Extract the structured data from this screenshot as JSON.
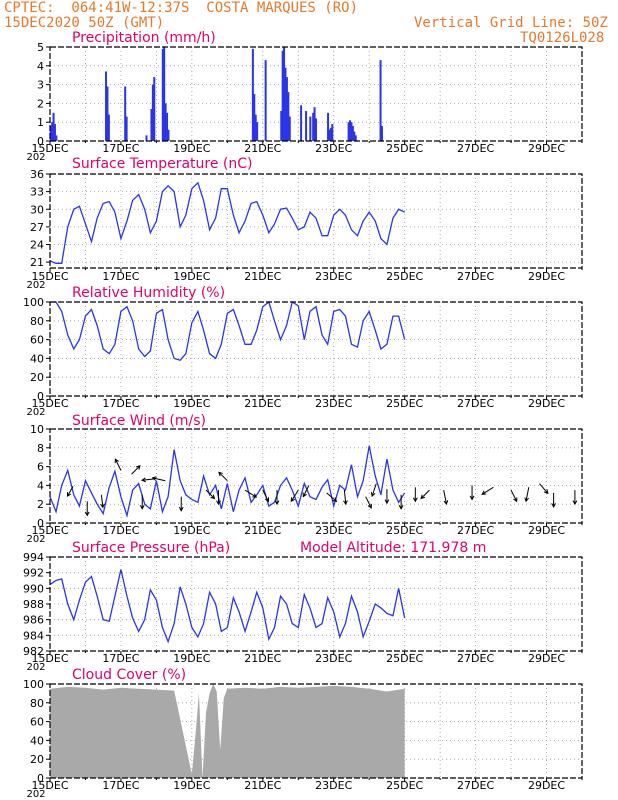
{
  "header": {
    "source_line": "CPTEC:  064:41W-12:37S  COSTA MARQUES (RO)",
    "date_line": "15DEC2020 50Z (GMT)",
    "grid_line": "Vertical Grid Line: 50Z",
    "code": "TQ0126L028"
  },
  "colors": {
    "header": "#e8782a",
    "panel_title": "#e0006e",
    "series": "#2b35e8",
    "bars": "#2b35e8",
    "cloud": "#a9a9a9",
    "arrows": "#000000",
    "grid": "#999999"
  },
  "x_axis": {
    "labels": [
      "15DEC",
      "17DEC",
      "19DEC",
      "21DEC",
      "23DEC",
      "25DEC",
      "27DEC",
      "29DEC"
    ],
    "clipped_year_label": "202"
  },
  "chart_data": [
    {
      "id": "precipitation",
      "type": "bar",
      "title": "Precipitation (mm/h)",
      "ylim": [
        0,
        5
      ],
      "yticks": [
        "0",
        "1",
        "2",
        "3",
        "4",
        "5"
      ],
      "x_days": [
        0.02,
        0.06,
        0.1,
        0.14,
        0.18,
        1.58,
        1.62,
        1.66,
        2.12,
        2.16,
        2.72,
        2.86,
        2.9,
        2.94,
        3.18,
        3.22,
        3.26,
        3.3,
        3.34,
        5.72,
        5.76,
        5.8,
        5.84,
        6.08,
        6.52,
        6.56,
        6.6,
        6.64,
        6.68,
        6.72,
        6.76,
        7.08,
        7.22,
        7.34,
        7.42,
        7.46,
        7.5,
        7.84,
        7.88,
        7.92,
        7.96,
        8.42,
        8.46,
        8.5,
        8.54,
        8.58,
        8.62,
        9.32,
        9.36
      ],
      "values": [
        0.8,
        1.0,
        1.5,
        0.9,
        0.3,
        3.7,
        2.9,
        1.4,
        2.9,
        1.3,
        0.3,
        1.7,
        3.0,
        3.4,
        4.9,
        5.0,
        2.0,
        1.5,
        0.6,
        4.9,
        2.5,
        1.4,
        1.0,
        4.3,
        1.6,
        4.8,
        5.0,
        3.9,
        3.4,
        2.6,
        1.3,
        1.9,
        1.6,
        1.3,
        1.5,
        1.8,
        1.2,
        1.5,
        0.6,
        0.7,
        0.9,
        1.0,
        1.1,
        1.0,
        0.8,
        0.5,
        0.3,
        4.3,
        0.8
      ],
      "grid": true
    },
    {
      "id": "temperature",
      "type": "line",
      "title": "Surface Temperature (nC)",
      "ylim": [
        20,
        36
      ],
      "yticks": [
        "21",
        "24",
        "27",
        "30",
        "33",
        "36"
      ],
      "x_days": [
        0.0,
        0.17,
        0.33,
        0.5,
        0.67,
        0.83,
        1.0,
        1.17,
        1.33,
        1.5,
        1.67,
        1.83,
        2.0,
        2.17,
        2.33,
        2.5,
        2.67,
        2.83,
        3.0,
        3.17,
        3.33,
        3.5,
        3.67,
        3.83,
        4.0,
        4.17,
        4.33,
        4.5,
        4.67,
        4.83,
        5.0,
        5.17,
        5.33,
        5.5,
        5.67,
        5.83,
        6.0,
        6.17,
        6.33,
        6.5,
        6.67,
        6.83,
        7.0,
        7.17,
        7.33,
        7.5,
        7.67,
        7.83,
        8.0,
        8.17,
        8.33,
        8.5,
        8.67,
        8.83,
        9.0,
        9.17,
        9.33,
        9.5,
        9.67,
        9.83,
        10.0
      ],
      "values": [
        21.2,
        20.8,
        20.8,
        27.0,
        30.0,
        30.5,
        27.5,
        24.5,
        28.5,
        31.0,
        31.3,
        29.5,
        25.0,
        28.0,
        31.5,
        32.5,
        30.0,
        26.0,
        28.0,
        33.0,
        34.0,
        33.0,
        27.0,
        29.0,
        33.5,
        34.5,
        31.5,
        26.5,
        28.5,
        33.5,
        33.5,
        29.0,
        26.0,
        28.0,
        31.0,
        31.3,
        29.0,
        26.0,
        27.5,
        30.0,
        30.2,
        28.5,
        26.5,
        27.0,
        29.5,
        28.5,
        25.5,
        25.5,
        29.0,
        30.0,
        29.0,
        26.5,
        25.5,
        28.0,
        29.5,
        28.0,
        25.0,
        24.0,
        28.5,
        30.0,
        29.5
      ],
      "grid": true
    },
    {
      "id": "humidity",
      "type": "line",
      "title": "Relative Humidity (%)",
      "ylim": [
        0,
        100
      ],
      "yticks": [
        "0",
        "20",
        "40",
        "60",
        "80",
        "100"
      ],
      "x_days": [
        0.0,
        0.17,
        0.33,
        0.5,
        0.67,
        0.83,
        1.0,
        1.17,
        1.33,
        1.5,
        1.67,
        1.83,
        2.0,
        2.17,
        2.33,
        2.5,
        2.67,
        2.83,
        3.0,
        3.17,
        3.33,
        3.5,
        3.67,
        3.83,
        4.0,
        4.17,
        4.33,
        4.5,
        4.67,
        4.83,
        5.0,
        5.17,
        5.33,
        5.5,
        5.67,
        5.83,
        6.0,
        6.17,
        6.33,
        6.5,
        6.67,
        6.83,
        7.0,
        7.17,
        7.33,
        7.5,
        7.67,
        7.83,
        8.0,
        8.17,
        8.33,
        8.5,
        8.67,
        8.83,
        9.0,
        9.17,
        9.33,
        9.5,
        9.67,
        9.83,
        10.0
      ],
      "values": [
        100,
        100,
        90,
        65,
        50,
        60,
        85,
        92,
        75,
        50,
        45,
        55,
        90,
        95,
        80,
        50,
        42,
        48,
        88,
        92,
        60,
        40,
        38,
        45,
        78,
        90,
        70,
        45,
        40,
        55,
        88,
        92,
        75,
        55,
        55,
        70,
        95,
        100,
        80,
        60,
        75,
        100,
        96,
        60,
        90,
        95,
        65,
        55,
        90,
        92,
        85,
        55,
        52,
        80,
        90,
        70,
        50,
        55,
        85,
        85,
        60
      ],
      "grid": true
    },
    {
      "id": "wind",
      "type": "line",
      "title": "Surface Wind (m/s)",
      "ylim": [
        0,
        10
      ],
      "yticks": [
        "0",
        "2",
        "4",
        "6",
        "8",
        "10"
      ],
      "x_days": [
        0.0,
        0.17,
        0.33,
        0.5,
        0.67,
        0.83,
        1.0,
        1.17,
        1.33,
        1.5,
        1.67,
        1.83,
        2.0,
        2.17,
        2.33,
        2.5,
        2.67,
        2.83,
        3.0,
        3.17,
        3.33,
        3.5,
        3.67,
        3.83,
        4.0,
        4.17,
        4.33,
        4.5,
        4.67,
        4.83,
        5.0,
        5.17,
        5.33,
        5.5,
        5.67,
        5.83,
        6.0,
        6.17,
        6.33,
        6.5,
        6.67,
        6.83,
        7.0,
        7.17,
        7.33,
        7.5,
        7.67,
        7.83,
        8.0,
        8.17,
        8.33,
        8.5,
        8.67,
        8.83,
        9.0,
        9.17,
        9.33,
        9.5,
        9.67,
        9.83,
        10.0
      ],
      "values": [
        2.8,
        1.2,
        4.0,
        5.6,
        3.0,
        1.8,
        4.5,
        3.2,
        2.0,
        1.0,
        3.8,
        5.5,
        2.8,
        0.8,
        3.5,
        4.2,
        2.0,
        1.5,
        4.5,
        1.2,
        2.8,
        7.8,
        4.5,
        3.0,
        2.5,
        2.2,
        5.0,
        3.0,
        4.0,
        1.5,
        4.2,
        1.2,
        3.5,
        4.8,
        2.2,
        3.0,
        4.0,
        1.8,
        2.2,
        4.0,
        4.8,
        3.5,
        1.8,
        4.2,
        2.8,
        2.5,
        3.8,
        4.6,
        1.8,
        4.0,
        3.5,
        6.2,
        2.8,
        4.5,
        8.2,
        5.0,
        3.0,
        6.8,
        3.5,
        2.2,
        3.2
      ],
      "vectors": [
        {
          "x": 0.65,
          "y": 3.9,
          "dx": -0.4,
          "dy": 0.7
        },
        {
          "x": 1.05,
          "y": 2.3,
          "dx": 0.0,
          "dy": 1.0
        },
        {
          "x": 1.45,
          "y": 3.0,
          "dx": 0.1,
          "dy": 0.9
        },
        {
          "x": 2.0,
          "y": 5.6,
          "dx": -0.4,
          "dy": -0.8
        },
        {
          "x": 2.3,
          "y": 5.2,
          "dx": 0.6,
          "dy": -0.6
        },
        {
          "x": 2.6,
          "y": 3.0,
          "dx": 0.0,
          "dy": 1.0
        },
        {
          "x": 2.95,
          "y": 4.7,
          "dx": -0.9,
          "dy": 0.1
        },
        {
          "x": 3.25,
          "y": 4.5,
          "dx": -0.9,
          "dy": -0.2
        },
        {
          "x": 3.7,
          "y": 2.8,
          "dx": 0.0,
          "dy": 1.0
        },
        {
          "x": 4.4,
          "y": 3.5,
          "dx": 0.6,
          "dy": 0.6
        },
        {
          "x": 4.75,
          "y": 3.5,
          "dx": 0.0,
          "dy": 1.0
        },
        {
          "x": 5.0,
          "y": 4.5,
          "dx": -0.6,
          "dy": -0.6
        },
        {
          "x": 5.5,
          "y": 3.5,
          "dx": 0.8,
          "dy": 0.5
        },
        {
          "x": 6.0,
          "y": 3.5,
          "dx": 0.4,
          "dy": 0.8
        },
        {
          "x": 6.4,
          "y": 3.5,
          "dx": 0.0,
          "dy": 1.0
        },
        {
          "x": 7.0,
          "y": 3.5,
          "dx": -0.5,
          "dy": 0.8
        },
        {
          "x": 7.3,
          "y": 4.0,
          "dx": -0.4,
          "dy": 0.8
        },
        {
          "x": 7.8,
          "y": 3.2,
          "dx": 0.7,
          "dy": 0.6
        },
        {
          "x": 8.3,
          "y": 3.5,
          "dx": 0.1,
          "dy": 1.0
        },
        {
          "x": 8.9,
          "y": 2.8,
          "dx": 0.4,
          "dy": 0.8
        },
        {
          "x": 9.2,
          "y": 4.2,
          "dx": -0.3,
          "dy": 0.9
        },
        {
          "x": 9.5,
          "y": 3.6,
          "dx": 0.0,
          "dy": 1.0
        },
        {
          "x": 9.9,
          "y": 3.0,
          "dx": 0.0,
          "dy": 1.0
        },
        {
          "x": 10.3,
          "y": 3.8,
          "dx": 0.0,
          "dy": 1.0
        },
        {
          "x": 10.7,
          "y": 3.5,
          "dx": -0.6,
          "dy": 0.6
        },
        {
          "x": 11.1,
          "y": 3.5,
          "dx": 0.2,
          "dy": 1.0
        },
        {
          "x": 11.9,
          "y": 4.0,
          "dx": 0.0,
          "dy": 1.0
        },
        {
          "x": 12.5,
          "y": 3.8,
          "dx": -0.8,
          "dy": 0.5
        },
        {
          "x": 13.0,
          "y": 3.5,
          "dx": 0.4,
          "dy": 0.8
        },
        {
          "x": 13.5,
          "y": 3.8,
          "dx": -0.2,
          "dy": 1.0
        },
        {
          "x": 13.8,
          "y": 4.2,
          "dx": 0.6,
          "dy": 0.7
        },
        {
          "x": 14.2,
          "y": 3.2,
          "dx": 0.0,
          "dy": 1.0
        },
        {
          "x": 14.8,
          "y": 3.5,
          "dx": 0.0,
          "dy": 1.0
        }
      ],
      "grid": true
    },
    {
      "id": "pressure",
      "type": "line",
      "title": "Surface Pressure (hPa)",
      "annotation": "Model Altitude: 171.978 m",
      "ylim": [
        982,
        994
      ],
      "yticks": [
        "982",
        "984",
        "986",
        "988",
        "990",
        "992",
        "994"
      ],
      "x_days": [
        0.0,
        0.17,
        0.33,
        0.5,
        0.67,
        0.83,
        1.0,
        1.17,
        1.33,
        1.5,
        1.67,
        1.83,
        2.0,
        2.17,
        2.33,
        2.5,
        2.67,
        2.83,
        3.0,
        3.17,
        3.33,
        3.5,
        3.67,
        3.83,
        4.0,
        4.17,
        4.33,
        4.5,
        4.67,
        4.83,
        5.0,
        5.17,
        5.33,
        5.5,
        5.67,
        5.83,
        6.0,
        6.17,
        6.33,
        6.5,
        6.67,
        6.83,
        7.0,
        7.17,
        7.33,
        7.5,
        7.67,
        7.83,
        8.0,
        8.17,
        8.33,
        8.5,
        8.67,
        8.83,
        9.0,
        9.17,
        9.33,
        9.5,
        9.67,
        9.83,
        10.0
      ],
      "values": [
        990.5,
        991.0,
        991.2,
        988.0,
        986.0,
        988.5,
        990.8,
        991.5,
        989.0,
        986.0,
        985.8,
        989.0,
        992.4,
        989.0,
        986.2,
        984.5,
        986.0,
        989.8,
        988.5,
        985.0,
        983.2,
        985.5,
        990.2,
        988.0,
        985.0,
        983.8,
        985.5,
        989.5,
        988.0,
        984.5,
        985.0,
        988.8,
        987.0,
        984.5,
        987.0,
        989.5,
        987.5,
        983.5,
        985.0,
        989.0,
        988.0,
        985.5,
        985.0,
        989.2,
        987.5,
        985.0,
        985.5,
        988.8,
        987.0,
        983.8,
        985.5,
        989.0,
        987.0,
        983.8,
        985.8,
        988.0,
        987.5,
        986.8,
        986.5,
        990.0,
        986.2
      ],
      "grid": true
    },
    {
      "id": "cloud",
      "type": "area",
      "title": "Cloud Cover (%)",
      "ylim": [
        0,
        100
      ],
      "yticks": [
        "0",
        "20",
        "40",
        "60",
        "80",
        "100"
      ],
      "x_days": [
        0.0,
        0.5,
        1.0,
        1.5,
        2.0,
        2.5,
        3.0,
        3.5,
        4.0,
        4.1,
        4.2,
        4.3,
        4.4,
        4.5,
        4.6,
        4.7,
        4.8,
        4.9,
        5.0,
        5.5,
        6.0,
        6.5,
        7.0,
        7.5,
        8.0,
        8.5,
        9.0,
        9.5,
        10.0
      ],
      "values": [
        95,
        97,
        96,
        94,
        96,
        95,
        94,
        93,
        4,
        45,
        90,
        0,
        70,
        90,
        100,
        92,
        30,
        85,
        95,
        96,
        95,
        97,
        96,
        97,
        98,
        97,
        95,
        92,
        95
      ],
      "grid": true
    }
  ]
}
